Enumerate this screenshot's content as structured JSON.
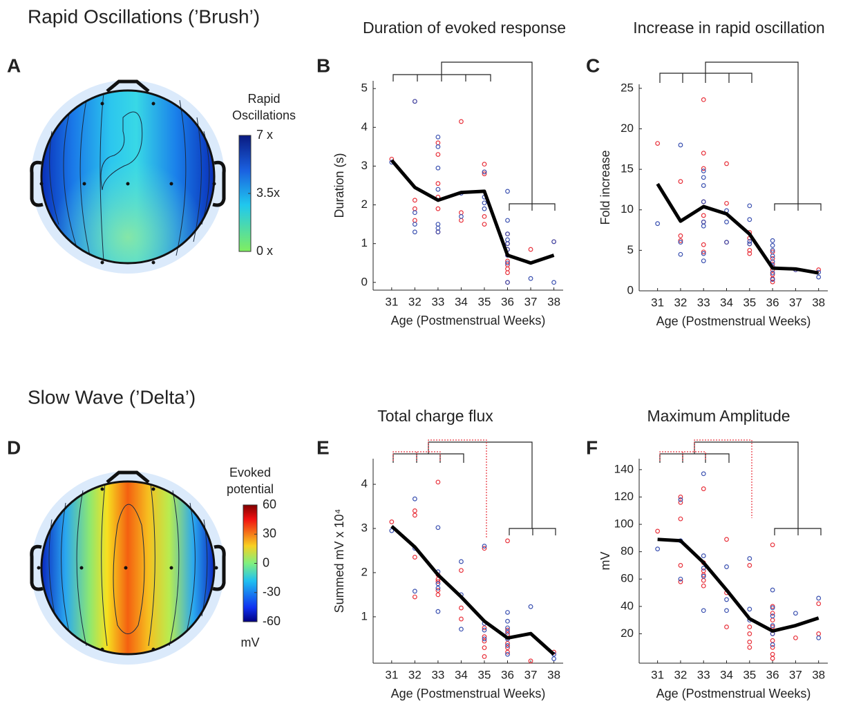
{
  "headings": [
    "Rapid Oscillations (’Brush’)",
    "Slow Wave (’Delta’)"
  ],
  "topomaps": [
    {
      "letter": "A",
      "label": "Rapid Oscillations",
      "clim": [
        0,
        7
      ],
      "ticks": [
        {
          "value": 7,
          "label": "7 x"
        },
        {
          "value": 3.5,
          "label": "3.5x"
        },
        {
          "value": 0,
          "label": "0 x"
        }
      ]
    },
    {
      "letter": "D",
      "label": "Evoked potential",
      "clim": [
        -60,
        60
      ],
      "ticks": [
        60,
        30,
        0,
        -30,
        -60
      ],
      "unit": "mV"
    }
  ],
  "chart_data": [
    {
      "type": "scatter",
      "letter": "B",
      "title": "Duration of evoked response",
      "x_label": "Age (Postmenstrual Weeks)",
      "y_label": "Duration (s)",
      "xlim": [
        30.2,
        38.4
      ],
      "xticks": [
        31,
        32,
        33,
        34,
        35,
        36,
        37,
        38
      ],
      "ylim": [
        -0.2,
        5.2
      ],
      "yticks": [
        0,
        1,
        2,
        3,
        4,
        5
      ],
      "series": [
        {
          "color": "#e8303a",
          "x": [
            31,
            32,
            32,
            32,
            32,
            33,
            33,
            33,
            33,
            33,
            33,
            34,
            34,
            34,
            35,
            35,
            35,
            35,
            35,
            36,
            36,
            36,
            36,
            36,
            36,
            36,
            36,
            36,
            37,
            38
          ],
          "values": [
            3.18,
            4.67,
            2.12,
            1.9,
            1.6,
            3.6,
            3.3,
            2.55,
            2.2,
            1.9,
            1.3,
            4.15,
            1.8,
            1.6,
            3.05,
            2.85,
            2.8,
            1.7,
            1.5,
            1.25,
            1.0,
            0.85,
            0.7,
            0.55,
            0.45,
            0.35,
            0.25,
            0,
            0.85,
            1.05
          ]
        },
        {
          "color": "#3a50b0",
          "x": [
            31,
            32,
            32,
            32,
            32,
            33,
            33,
            33,
            33,
            33,
            33,
            33,
            34,
            34,
            35,
            35,
            35,
            35,
            36,
            36,
            36,
            36,
            36,
            36,
            36,
            36,
            36,
            37,
            38,
            38
          ],
          "values": [
            3.1,
            4.67,
            1.8,
            1.5,
            1.3,
            3.75,
            3.5,
            2.95,
            2.4,
            1.5,
            1.4,
            1.3,
            2.3,
            1.7,
            2.85,
            2.2,
            2.05,
            1.9,
            2.35,
            1.6,
            1.25,
            1.1,
            1.0,
            0.85,
            0.7,
            0.5,
            0,
            0.1,
            1.05,
            0
          ]
        },
        {
          "color": "#000000",
          "style": "line",
          "x": [
            31,
            32,
            33,
            34,
            35,
            36,
            37,
            38
          ],
          "values": [
            3.15,
            2.45,
            2.12,
            2.32,
            2.35,
            0.7,
            0.5,
            0.7
          ]
        }
      ]
    },
    {
      "type": "scatter",
      "letter": "C",
      "title": "Increase in rapid oscillation",
      "x_label": "Age (Postmenstrual Weeks)",
      "y_label": "Fold increase",
      "xlim": [
        30.2,
        38.4
      ],
      "xticks": [
        31,
        32,
        33,
        34,
        35,
        36,
        37,
        38
      ],
      "ylim": [
        0,
        25.5
      ],
      "yticks": [
        0,
        5,
        10,
        15,
        20,
        25
      ],
      "series": [
        {
          "color": "#e8303a",
          "x": [
            31,
            32,
            32,
            32,
            33,
            33,
            33,
            33,
            33,
            33,
            33,
            33,
            34,
            34,
            34,
            35,
            35,
            35,
            35,
            35,
            36,
            36,
            36,
            36,
            36,
            36,
            36,
            37,
            38
          ],
          "values": [
            18.2,
            13.5,
            6.8,
            6.2,
            23.6,
            17,
            15.1,
            11,
            9.3,
            8.5,
            5.7,
            4.8,
            15.7,
            10.8,
            6,
            7.2,
            6.5,
            5.8,
            5,
            4.6,
            4.8,
            4,
            3.3,
            2.6,
            2,
            1.5,
            1.1,
            2.6,
            2.6
          ]
        },
        {
          "color": "#3a50b0",
          "x": [
            31,
            32,
            32,
            32,
            33,
            33,
            33,
            33,
            33,
            33,
            33,
            33,
            34,
            34,
            34,
            35,
            35,
            35,
            35,
            36,
            36,
            36,
            36,
            36,
            36,
            36,
            36,
            37,
            38,
            38
          ],
          "values": [
            8.3,
            18,
            6,
            4.5,
            14.8,
            14,
            13,
            11,
            8.5,
            8,
            4.6,
            3.7,
            9.9,
            8.5,
            6,
            10.5,
            8.8,
            6.1,
            5.8,
            6.2,
            5.6,
            5,
            4.3,
            3.6,
            3,
            2.2,
            1.4,
            2.6,
            2.3,
            1.7
          ]
        },
        {
          "color": "#000000",
          "style": "line",
          "x": [
            31,
            32,
            33,
            34,
            35,
            36,
            37,
            38
          ],
          "values": [
            13.2,
            8.6,
            10.4,
            9.5,
            7.0,
            2.8,
            2.7,
            2.2
          ]
        }
      ]
    },
    {
      "type": "scatter",
      "letter": "E",
      "title": "Total charge flux",
      "x_label": "Age (Postmenstrual Weeks)",
      "y_label": "Summed mV x 10⁴",
      "xlim": [
        30.2,
        38.4
      ],
      "xticks": [
        31,
        32,
        33,
        34,
        35,
        36,
        37,
        38
      ],
      "ylim": [
        -0.05,
        4.58
      ],
      "yticks": [
        1,
        2,
        3,
        4
      ],
      "series": [
        {
          "color": "#e8303a",
          "x": [
            31,
            32,
            32,
            32,
            32,
            33,
            33,
            33,
            33,
            33,
            33,
            34,
            34,
            34,
            35,
            35,
            35,
            35,
            35,
            35,
            36,
            36,
            36,
            36,
            36,
            36,
            36,
            37,
            38
          ],
          "values": [
            3.15,
            3.4,
            3.3,
            2.35,
            1.45,
            4.05,
            1.95,
            1.85,
            1.8,
            1.6,
            1.5,
            2.05,
            1.2,
            0.95,
            2.55,
            0.75,
            0.55,
            0.45,
            0.3,
            0.1,
            2.72,
            0.7,
            0.6,
            0.5,
            0.4,
            0.3,
            0.2,
            0,
            0.2
          ]
        },
        {
          "color": "#3a50b0",
          "x": [
            31,
            32,
            32,
            32,
            33,
            33,
            33,
            33,
            33,
            34,
            34,
            34,
            35,
            35,
            35,
            35,
            36,
            36,
            36,
            36,
            36,
            36,
            36,
            37,
            38,
            38
          ],
          "values": [
            2.95,
            3.67,
            2.55,
            1.58,
            3.02,
            2.02,
            1.75,
            1.65,
            1.12,
            2.25,
            1.5,
            0.72,
            2.6,
            0.85,
            0.7,
            0.5,
            1.1,
            0.9,
            0.75,
            0.65,
            0.5,
            0.35,
            0.15,
            1.23,
            0.15,
            0.05
          ]
        },
        {
          "color": "#000000",
          "style": "line",
          "x": [
            31,
            32,
            33,
            34,
            35,
            36,
            37,
            38
          ],
          "values": [
            3.05,
            2.58,
            1.95,
            1.45,
            0.9,
            0.52,
            0.62,
            0.15
          ]
        }
      ]
    },
    {
      "type": "scatter",
      "letter": "F",
      "title": "Maximum Amplitude",
      "x_label": "Age (Postmenstrual Weeks)",
      "y_label": "mV",
      "xlim": [
        30.2,
        38.4
      ],
      "xticks": [
        31,
        32,
        33,
        34,
        35,
        36,
        37,
        38
      ],
      "ylim": [
        -1.5,
        148
      ],
      "yticks": [
        20,
        40,
        60,
        80,
        100,
        120,
        140
      ],
      "series": [
        {
          "color": "#e8303a",
          "x": [
            31,
            32,
            32,
            32,
            32,
            32,
            33,
            33,
            33,
            33,
            33,
            33,
            34,
            34,
            34,
            35,
            35,
            35,
            35,
            35,
            36,
            36,
            36,
            36,
            36,
            36,
            36,
            36,
            36,
            36,
            37,
            38,
            38
          ],
          "values": [
            95,
            120,
            116,
            104,
            70,
            58,
            126,
            72,
            66,
            63,
            59,
            55,
            89,
            50,
            25,
            70,
            25,
            20,
            14,
            10,
            85,
            40,
            35,
            30,
            25,
            20,
            15,
            10,
            5,
            2,
            17,
            42,
            20
          ]
        },
        {
          "color": "#3a50b0",
          "x": [
            31,
            32,
            32,
            32,
            33,
            33,
            33,
            33,
            33,
            34,
            34,
            34,
            35,
            35,
            35,
            36,
            36,
            36,
            36,
            36,
            36,
            37,
            38,
            38
          ],
          "values": [
            82,
            118,
            88,
            60,
            137,
            77,
            68,
            62,
            37,
            69,
            45,
            37,
            75,
            38,
            30,
            52,
            39,
            33,
            26,
            20,
            12,
            35,
            46,
            17
          ]
        },
        {
          "color": "#000000",
          "style": "line",
          "x": [
            31,
            32,
            33,
            34,
            35,
            36,
            37,
            38
          ],
          "values": [
            89,
            88,
            72,
            52,
            31,
            22,
            26,
            31.5
          ]
        }
      ]
    }
  ]
}
